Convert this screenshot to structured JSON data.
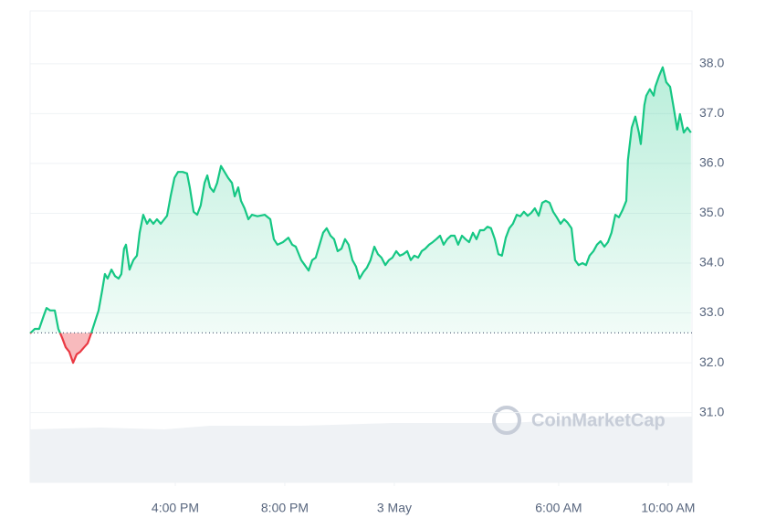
{
  "chart_data": {
    "type": "line",
    "watermark": "CoinMarketCap",
    "x": [
      -13.3,
      -13.13,
      -12.97,
      -12.8,
      -12.7,
      -12.57,
      -12.4,
      -12.27,
      -12.13,
      -12.0,
      -11.87,
      -11.73,
      -11.6,
      -11.47,
      -11.33,
      -11.2,
      -11.07,
      -10.93,
      -10.8,
      -10.67,
      -10.57,
      -10.47,
      -10.33,
      -10.2,
      -10.07,
      -9.97,
      -9.87,
      -9.8,
      -9.67,
      -9.53,
      -9.4,
      -9.3,
      -9.17,
      -9.03,
      -8.93,
      -8.8,
      -8.67,
      -8.53,
      -8.4,
      -8.3,
      -8.17,
      -8.03,
      -7.9,
      -7.73,
      -7.57,
      -7.47,
      -7.33,
      -7.2,
      -7.07,
      -6.93,
      -6.83,
      -6.73,
      -6.6,
      -6.47,
      -6.33,
      -6.2,
      -6.07,
      -5.93,
      -5.83,
      -5.7,
      -5.6,
      -5.47,
      -5.33,
      -5.2,
      -5.0,
      -4.73,
      -4.53,
      -4.4,
      -4.27,
      -4.07,
      -3.87,
      -3.73,
      -3.6,
      -3.4,
      -3.27,
      -3.13,
      -3.0,
      -2.87,
      -2.73,
      -2.6,
      -2.47,
      -2.33,
      -2.2,
      -2.07,
      -1.93,
      -1.8,
      -1.67,
      -1.53,
      -1.4,
      -1.27,
      -1.13,
      -1.0,
      -0.87,
      -0.73,
      -0.6,
      -0.47,
      -0.33,
      -0.2,
      -0.07,
      0.07,
      0.2,
      0.33,
      0.47,
      0.6,
      0.73,
      0.87,
      1.0,
      1.13,
      1.27,
      1.4,
      1.53,
      1.67,
      1.8,
      1.93,
      2.07,
      2.2,
      2.33,
      2.47,
      2.6,
      2.73,
      2.87,
      3.0,
      3.13,
      3.27,
      3.4,
      3.53,
      3.67,
      3.8,
      3.93,
      4.07,
      4.2,
      4.33,
      4.47,
      4.6,
      4.73,
      4.87,
      5.0,
      5.13,
      5.27,
      5.4,
      5.53,
      5.67,
      5.8,
      5.93,
      6.07,
      6.2,
      6.33,
      6.47,
      6.6,
      6.73,
      6.87,
      7.0,
      7.13,
      7.27,
      7.4,
      7.53,
      7.67,
      7.8,
      7.93,
      8.07,
      8.2,
      8.33,
      8.47,
      8.53,
      8.67,
      8.8,
      8.93,
      9.0,
      9.13,
      9.2,
      9.33,
      9.47,
      9.53,
      9.67,
      9.8,
      9.93,
      10.07,
      10.2,
      10.33,
      10.43,
      10.57,
      10.7,
      10.83
    ],
    "series": [
      {
        "color": "#16c784",
        "below_color": "#ea3943",
        "values": [
          32.59,
          32.68,
          32.68,
          32.95,
          33.1,
          33.05,
          33.05,
          32.68,
          32.5,
          32.31,
          32.22,
          32.0,
          32.17,
          32.22,
          32.31,
          32.39,
          32.59,
          32.83,
          33.05,
          33.45,
          33.78,
          33.69,
          33.87,
          33.74,
          33.69,
          33.78,
          34.29,
          34.37,
          33.87,
          34.06,
          34.15,
          34.61,
          34.97,
          34.79,
          34.88,
          34.79,
          34.88,
          34.79,
          34.88,
          34.95,
          35.34,
          35.71,
          35.83,
          35.83,
          35.8,
          35.52,
          35.03,
          34.97,
          35.16,
          35.61,
          35.76,
          35.52,
          35.43,
          35.61,
          35.95,
          35.83,
          35.71,
          35.61,
          35.34,
          35.52,
          35.25,
          35.1,
          34.88,
          34.97,
          34.94,
          34.97,
          34.88,
          34.48,
          34.37,
          34.42,
          34.51,
          34.37,
          34.33,
          34.06,
          33.96,
          33.85,
          34.06,
          34.11,
          34.37,
          34.61,
          34.7,
          34.55,
          34.48,
          34.24,
          34.29,
          34.48,
          34.37,
          34.06,
          33.93,
          33.69,
          33.82,
          33.91,
          34.06,
          34.33,
          34.18,
          34.11,
          33.96,
          34.06,
          34.11,
          34.24,
          34.15,
          34.18,
          34.24,
          34.06,
          34.15,
          34.11,
          34.24,
          34.29,
          34.37,
          34.42,
          34.48,
          34.55,
          34.37,
          34.48,
          34.55,
          34.55,
          34.37,
          34.55,
          34.48,
          34.42,
          34.61,
          34.48,
          34.66,
          34.66,
          34.73,
          34.7,
          34.48,
          34.18,
          34.15,
          34.51,
          34.7,
          34.79,
          34.97,
          34.94,
          35.03,
          34.95,
          35.01,
          35.1,
          34.95,
          35.21,
          35.25,
          35.21,
          35.03,
          34.92,
          34.79,
          34.88,
          34.81,
          34.7,
          34.06,
          33.96,
          34.0,
          33.96,
          34.15,
          34.24,
          34.37,
          34.44,
          34.33,
          34.42,
          34.61,
          34.97,
          34.92,
          35.06,
          35.25,
          36.07,
          36.72,
          36.94,
          36.62,
          36.39,
          37.17,
          37.36,
          37.49,
          37.36,
          37.54,
          37.76,
          37.93,
          37.63,
          37.54,
          37.12,
          36.68,
          36.99,
          36.62,
          36.72,
          36.62
        ]
      }
    ],
    "baseline": 32.6,
    "xlim": [
      -13.3,
      10.87
    ],
    "xticks": [
      {
        "value": -8,
        "label": "4:00 PM"
      },
      {
        "value": -4,
        "label": "8:00 PM"
      },
      {
        "value": 0,
        "label": "3 May"
      },
      {
        "value": 6,
        "label": "6:00 AM"
      },
      {
        "value": 10,
        "label": "10:00 AM"
      }
    ],
    "ylim": [
      29.6,
      39.06
    ],
    "yticks": [
      {
        "value": 31,
        "label": "31.0"
      },
      {
        "value": 32,
        "label": "32.0"
      },
      {
        "value": 33,
        "label": "33.0"
      },
      {
        "value": 34,
        "label": "34.0"
      },
      {
        "value": 35,
        "label": "35.0"
      },
      {
        "value": 36,
        "label": "36.0"
      },
      {
        "value": 37,
        "label": "37.0"
      },
      {
        "value": 38,
        "label": "38.0"
      }
    ],
    "grid": true
  }
}
